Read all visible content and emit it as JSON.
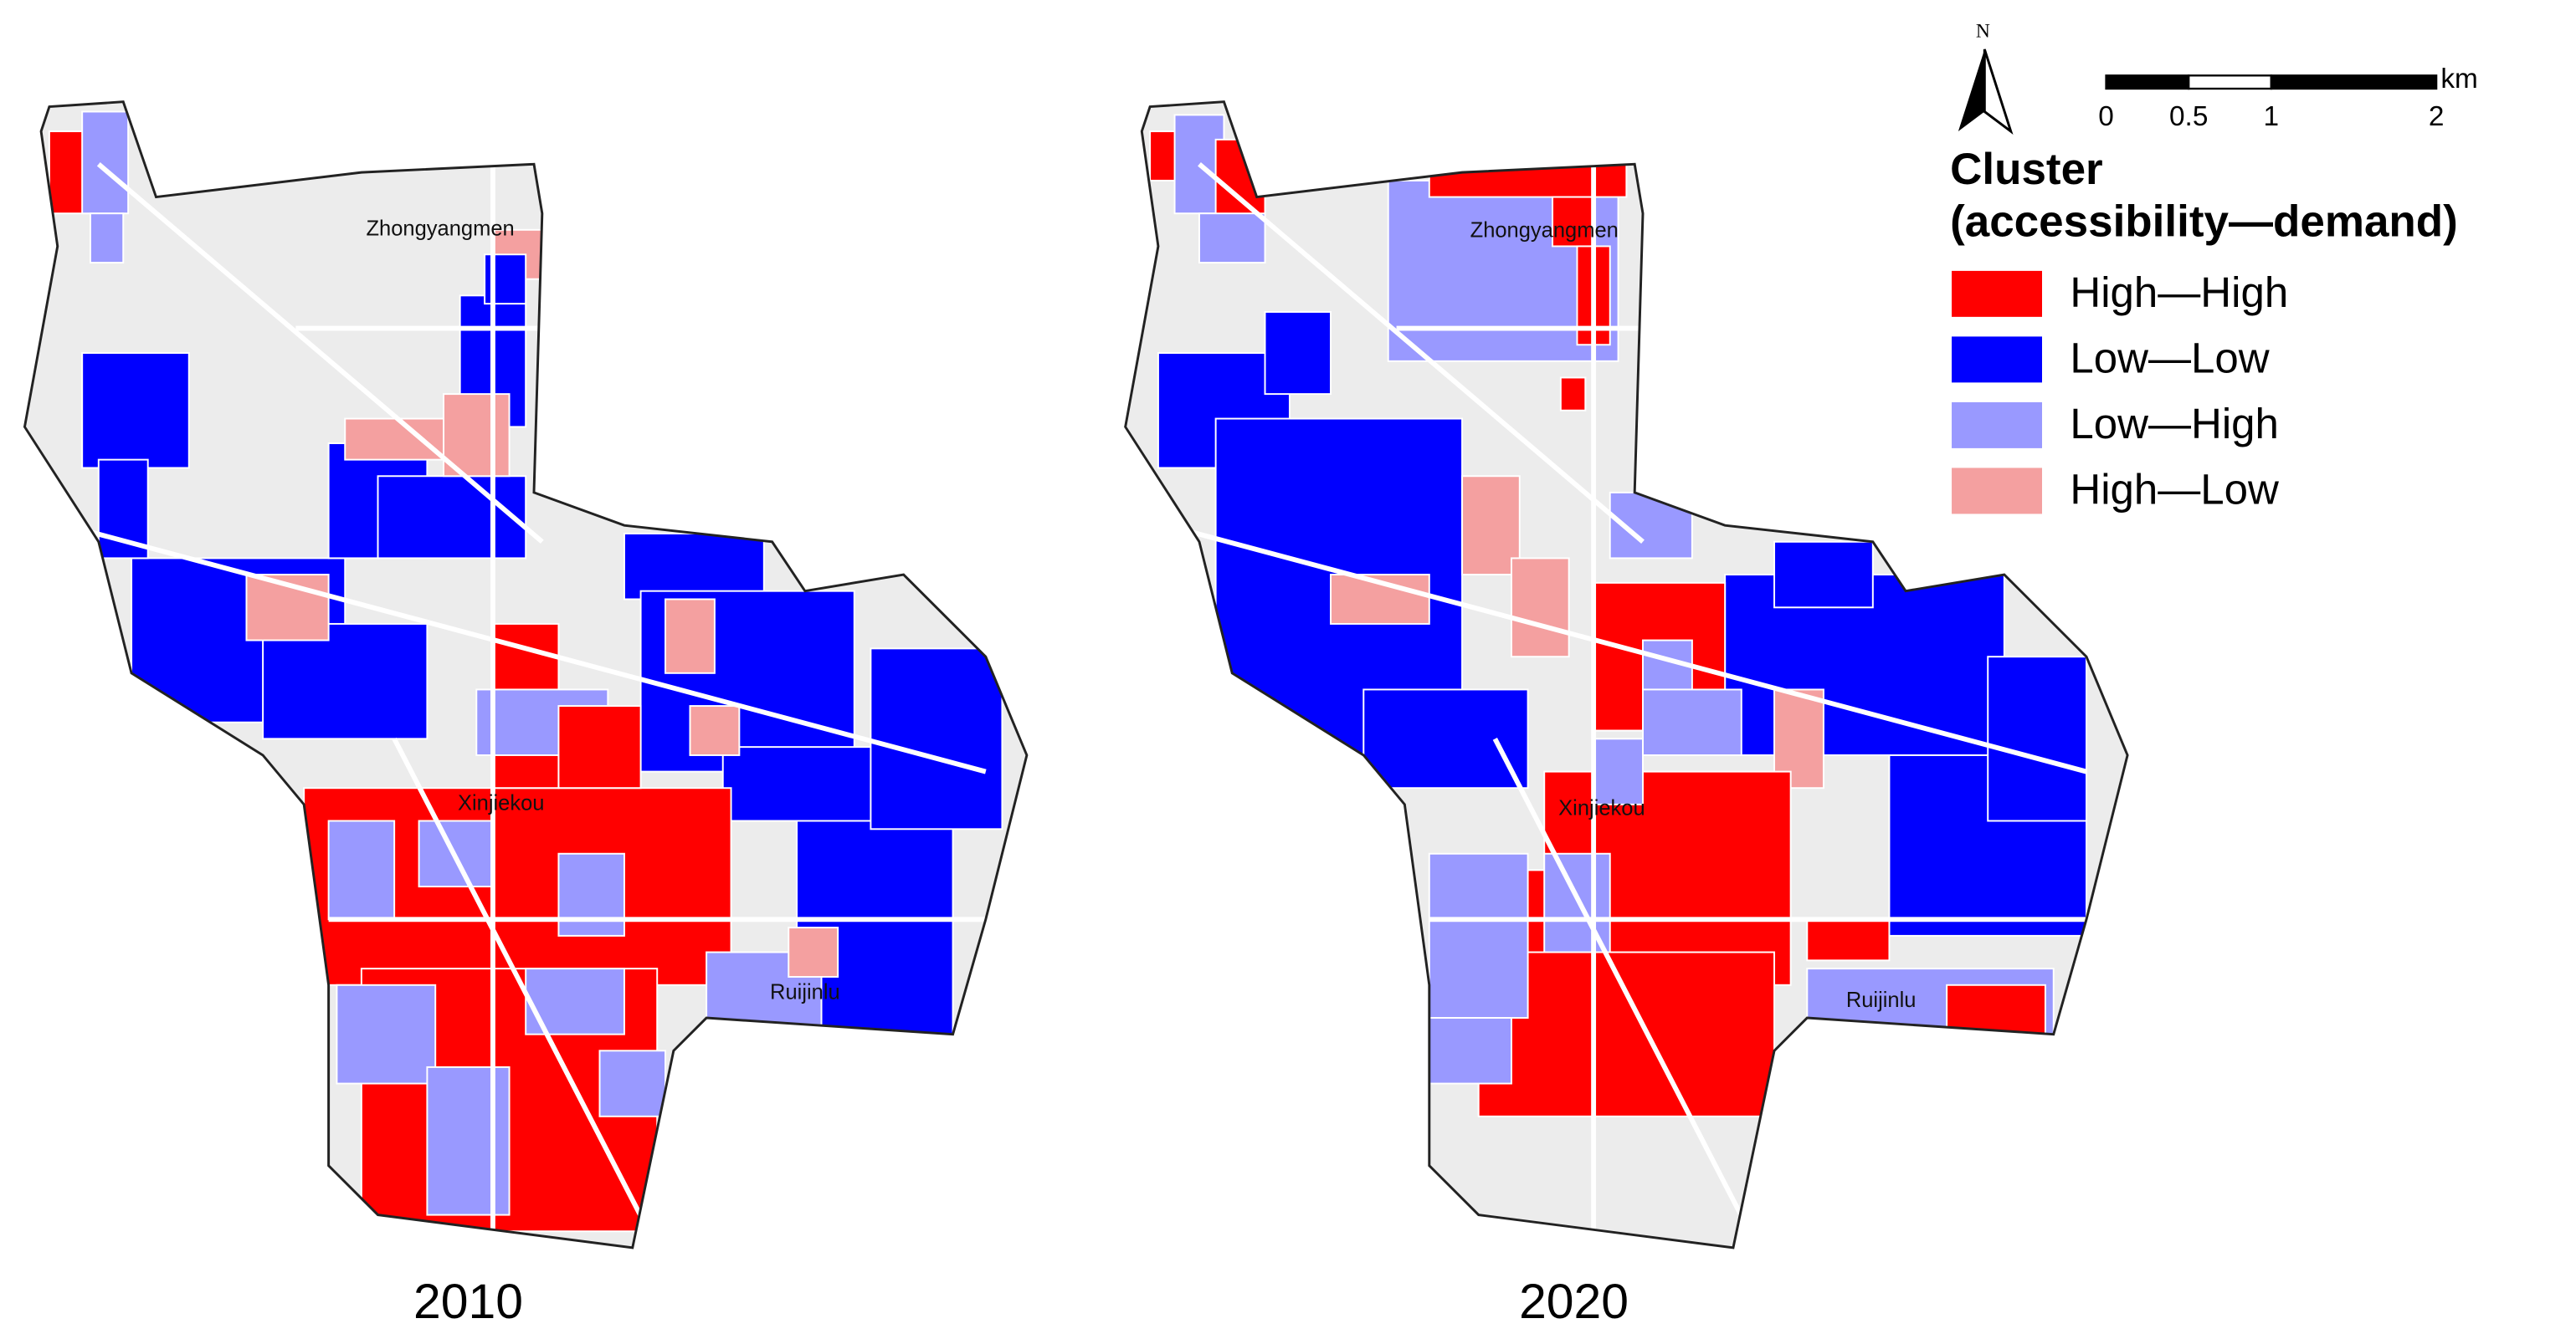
{
  "north": "N",
  "scale_bar": {
    "ticks": [
      0,
      0.5,
      1,
      2
    ],
    "unit": "km"
  },
  "legend": {
    "title": [
      "Cluster",
      "(accessibility—demand)"
    ],
    "items": [
      {
        "label": "High—High",
        "color": "#ff0000"
      },
      {
        "label": "Low—Low",
        "color": "#0000ff"
      },
      {
        "label": "Low—High",
        "color": "#9999ff"
      },
      {
        "label": "High—Low",
        "color": "#f4a0a0"
      }
    ]
  },
  "maps": [
    {
      "year": "2010",
      "places": [
        "Zhongyangmen",
        "Xinjiekou",
        "Ruijinlu"
      ]
    },
    {
      "year": "2020",
      "places": [
        "Zhongyangmen",
        "Xinjiekou",
        "Ruijinlu"
      ]
    }
  ]
}
